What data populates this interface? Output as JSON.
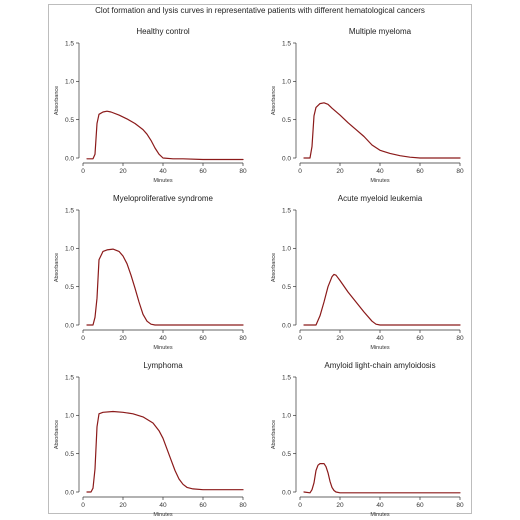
{
  "figure": {
    "title": "Clot formation and lysis curves in representative patients with different hematological cancers"
  },
  "colors": {
    "curve": "#8b1a1a",
    "axis": "#333333",
    "frame": "#bdbdbd"
  },
  "chart_data": [
    {
      "type": "line",
      "title": "Healthy control",
      "xlabel": "Minutes",
      "ylabel": "Absorbance",
      "xlim": [
        0,
        80
      ],
      "ylim": [
        0,
        1.5
      ],
      "xticks": [
        0,
        20,
        40,
        60,
        80
      ],
      "yticks": [
        0.0,
        0.5,
        1.0,
        1.5
      ],
      "grid": false,
      "series": [
        {
          "x": [
            2,
            5,
            6,
            7,
            8,
            10,
            12,
            14,
            18,
            22,
            26,
            30,
            32,
            34,
            36,
            38,
            40,
            45,
            50,
            60,
            70,
            80
          ],
          "values": [
            -0.01,
            -0.01,
            0.05,
            0.45,
            0.57,
            0.6,
            0.61,
            0.6,
            0.56,
            0.51,
            0.45,
            0.37,
            0.31,
            0.23,
            0.13,
            0.05,
            0.0,
            -0.01,
            -0.01,
            -0.02,
            -0.02,
            -0.02
          ]
        }
      ]
    },
    {
      "type": "line",
      "title": "Multiple myeloma",
      "xlabel": "Minutes",
      "ylabel": "Absorbance",
      "xlim": [
        0,
        80
      ],
      "ylim": [
        0,
        1.5
      ],
      "xticks": [
        0,
        20,
        40,
        60,
        80
      ],
      "yticks": [
        0.0,
        0.5,
        1.0,
        1.5
      ],
      "grid": false,
      "series": [
        {
          "x": [
            2,
            5,
            6,
            7,
            8,
            10,
            12,
            14,
            16,
            20,
            24,
            28,
            32,
            36,
            40,
            45,
            50,
            55,
            60,
            65,
            70,
            80
          ],
          "values": [
            0.0,
            0.0,
            0.15,
            0.55,
            0.66,
            0.71,
            0.72,
            0.7,
            0.65,
            0.56,
            0.46,
            0.37,
            0.28,
            0.17,
            0.1,
            0.06,
            0.03,
            0.01,
            0.0,
            0.0,
            0.0,
            0.0
          ]
        }
      ]
    },
    {
      "type": "line",
      "title": "Myeloproliferative syndrome",
      "xlabel": "Minutes",
      "ylabel": "Absorbance",
      "xlim": [
        0,
        80
      ],
      "ylim": [
        0,
        1.5
      ],
      "xticks": [
        0,
        20,
        40,
        60,
        80
      ],
      "yticks": [
        0.0,
        0.5,
        1.0,
        1.5
      ],
      "grid": false,
      "series": [
        {
          "x": [
            2,
            5,
            6,
            7,
            8,
            10,
            12,
            15,
            18,
            20,
            22,
            24,
            26,
            28,
            30,
            32,
            34,
            36,
            40,
            50,
            60,
            80
          ],
          "values": [
            0.0,
            0.0,
            0.1,
            0.35,
            0.85,
            0.96,
            0.98,
            0.99,
            0.96,
            0.9,
            0.8,
            0.65,
            0.48,
            0.3,
            0.14,
            0.05,
            0.01,
            0.0,
            0.0,
            0.0,
            0.0,
            0.0
          ]
        }
      ]
    },
    {
      "type": "line",
      "title": "Acute myeloid leukemia",
      "xlabel": "Minutes",
      "ylabel": "Absorbance",
      "xlim": [
        0,
        80
      ],
      "ylim": [
        0,
        1.5
      ],
      "xticks": [
        0,
        20,
        40,
        60,
        80
      ],
      "yticks": [
        0.0,
        0.5,
        1.0,
        1.5
      ],
      "grid": false,
      "series": [
        {
          "x": [
            2,
            5,
            8,
            10,
            12,
            14,
            16,
            17,
            18,
            20,
            24,
            28,
            32,
            36,
            38,
            40,
            45,
            50,
            60,
            70,
            80
          ],
          "values": [
            0.0,
            0.0,
            0.0,
            0.12,
            0.3,
            0.5,
            0.63,
            0.66,
            0.65,
            0.58,
            0.43,
            0.3,
            0.17,
            0.05,
            0.01,
            0.0,
            0.0,
            0.0,
            0.0,
            0.0,
            0.0
          ]
        }
      ]
    },
    {
      "type": "line",
      "title": "Lymphoma",
      "xlabel": "Minutes",
      "ylabel": "Absorbance",
      "xlim": [
        0,
        80
      ],
      "ylim": [
        0,
        1.5
      ],
      "xticks": [
        0,
        20,
        40,
        60,
        80
      ],
      "yticks": [
        0.0,
        0.5,
        1.0,
        1.5
      ],
      "grid": false,
      "series": [
        {
          "x": [
            2,
            4,
            5,
            6,
            7,
            8,
            10,
            15,
            20,
            25,
            30,
            35,
            38,
            40,
            42,
            44,
            46,
            48,
            50,
            52,
            55,
            60,
            65,
            70,
            80
          ],
          "values": [
            0.0,
            0.0,
            0.05,
            0.3,
            0.85,
            1.02,
            1.04,
            1.05,
            1.04,
            1.02,
            0.98,
            0.9,
            0.8,
            0.7,
            0.56,
            0.42,
            0.28,
            0.17,
            0.1,
            0.06,
            0.04,
            0.03,
            0.03,
            0.03,
            0.03
          ]
        }
      ]
    },
    {
      "type": "line",
      "title": "Amyloid light-chain amyloidosis",
      "xlabel": "Minutes",
      "ylabel": "Absorbance",
      "xlim": [
        0,
        80
      ],
      "ylim": [
        0,
        1.5
      ],
      "xticks": [
        0,
        20,
        40,
        60,
        80
      ],
      "yticks": [
        0.0,
        0.5,
        1.0,
        1.5
      ],
      "grid": false,
      "series": [
        {
          "x": [
            2,
            5,
            6,
            7,
            8,
            9,
            10,
            12,
            13,
            14,
            15,
            16,
            17,
            18,
            20,
            30,
            40,
            60,
            80
          ],
          "values": [
            0.0,
            -0.01,
            0.03,
            0.12,
            0.28,
            0.35,
            0.37,
            0.37,
            0.33,
            0.25,
            0.14,
            0.06,
            0.02,
            0.0,
            -0.01,
            -0.01,
            -0.01,
            -0.01,
            -0.01
          ]
        }
      ]
    }
  ]
}
